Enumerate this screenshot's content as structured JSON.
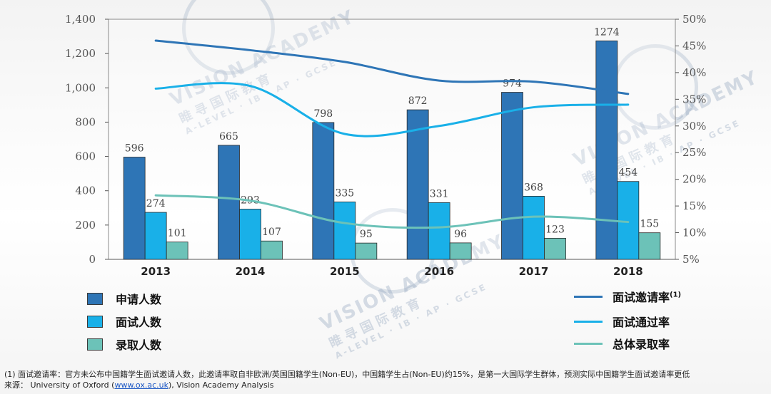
{
  "chart_data": {
    "type": "bar",
    "categories": [
      "2013",
      "2014",
      "2015",
      "2016",
      "2017",
      "2018"
    ],
    "series": [
      {
        "name": "申请人数",
        "values": [
          596,
          665,
          798,
          872,
          974,
          1274
        ],
        "color": "#2e75b6",
        "axis": "left"
      },
      {
        "name": "面试人数",
        "values": [
          274,
          293,
          335,
          331,
          368,
          454
        ],
        "color": "#19b0e8",
        "axis": "left"
      },
      {
        "name": "录取人数",
        "values": [
          101,
          107,
          95,
          96,
          123,
          155
        ],
        "color": "#6cc2b8",
        "axis": "left"
      }
    ],
    "lines": [
      {
        "name": "面试邀请率",
        "name_sup": "(1)",
        "values": [
          46.0,
          44.2,
          42.0,
          38.5,
          38.3,
          36.0
        ],
        "color": "#2e75b6",
        "axis": "right"
      },
      {
        "name": "面试通过率",
        "values": [
          37.0,
          37.5,
          28.5,
          30.0,
          33.5,
          34.0
        ],
        "color": "#19b0e8",
        "axis": "right"
      },
      {
        "name": "总体录取率",
        "values": [
          17.0,
          16.0,
          11.8,
          11.0,
          13.0,
          12.0
        ],
        "color": "#6cc2b8",
        "axis": "right"
      }
    ],
    "y_left": {
      "min": 0,
      "max": 1400,
      "ticks": [
        "0",
        "200",
        "400",
        "600",
        "800",
        "1,000",
        "1,200",
        "1,400"
      ]
    },
    "y_right": {
      "min": 5,
      "max": 50,
      "ticks": [
        "5%",
        "10%",
        "15%",
        "20%",
        "25%",
        "30%",
        "35%",
        "40%",
        "45%",
        "50%"
      ]
    },
    "grid": false,
    "legend": "bottom"
  },
  "watermark": {
    "brand": "VISION ACADEMY",
    "brand_cn": "睢寻国际教育",
    "tagline": "A-LEVEL · IB · AP · GCSE"
  },
  "footnote": {
    "line1": "(1) 面试邀请率：官方未公布中国籍学生面试邀请人数，此邀请率取自非欧洲/英国国籍学生(Non-EU)，中国籍学生占(Non-EU)约15%，是第一大国际学生群体，预测实际中国籍学生面试邀请率更低",
    "source_prefix": "来源： University of Oxford (",
    "source_link": "www.ox.ac.uk",
    "source_suffix": "), Vision Academy Analysis"
  }
}
